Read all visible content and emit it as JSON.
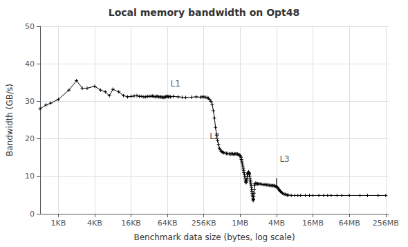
{
  "chart_data": {
    "type": "line",
    "title": "Local memory bandwidth on Opt48",
    "xlabel": "Benchmark data size (bytes, log scale)",
    "ylabel": "Bandwidth (GB/s)",
    "log": "x",
    "grid": true,
    "color": "black",
    "marker": "+",
    "xlim": [
      512,
      300000000
    ],
    "ylim": [
      0,
      50
    ],
    "yticks": [
      0,
      10,
      20,
      30,
      40,
      50
    ],
    "xticks": [
      {
        "value": 1024,
        "label": "1KB"
      },
      {
        "value": 4096,
        "label": "4KB"
      },
      {
        "value": 16384,
        "label": "16KB"
      },
      {
        "value": 65536,
        "label": "64KB"
      },
      {
        "value": 262144,
        "label": "256KB"
      },
      {
        "value": 1048576,
        "label": "1MB"
      },
      {
        "value": 4194304,
        "label": "4MB"
      },
      {
        "value": 16777216,
        "label": "16MB"
      },
      {
        "value": 67108864,
        "label": "64MB"
      },
      {
        "value": 268435456,
        "label": "256MB"
      }
    ],
    "annotations": [
      {
        "text": "L1",
        "x": 73728,
        "y": 33.5
      },
      {
        "text": "L2",
        "x": 327680,
        "y": 19.5
      },
      {
        "text": "L3",
        "x": 4718592,
        "y": 13.5
      }
    ],
    "vlines": [
      {
        "x": 4194304,
        "ymin": 7.2,
        "ymax": 9.5,
        "color": "black"
      }
    ],
    "x": [
      512,
      640,
      768,
      1024,
      1536,
      2048,
      2560,
      3072,
      4096,
      5120,
      6144,
      7168,
      8192,
      10240,
      12288,
      14336,
      16384,
      18432,
      20480,
      22528,
      24576,
      26624,
      28672,
      30720,
      32768,
      34816,
      36864,
      38912,
      40960,
      43008,
      45056,
      47104,
      49152,
      51200,
      53248,
      55296,
      57344,
      59392,
      61440,
      63488,
      65536,
      67584,
      69632,
      73728,
      81920,
      98304,
      114688,
      131072,
      163840,
      196608,
      229376,
      245760,
      262144,
      278528,
      294912,
      311296,
      327680,
      344064,
      360448,
      376832,
      393216,
      409600,
      425984,
      442368,
      458752,
      475136,
      491520,
      507904,
      524288,
      540672,
      557056,
      589824,
      622592,
      655360,
      688128,
      720896,
      753664,
      786432,
      819200,
      851968,
      884736,
      917504,
      950272,
      983040,
      1015808,
      1048576,
      1064960,
      1081344,
      1097728,
      1114112,
      1130496,
      1146880,
      1163264,
      1179648,
      1196032,
      1212416,
      1228800,
      1245184,
      1261568,
      1277952,
      1294336,
      1310720,
      1327104,
      1343488,
      1359872,
      1376256,
      1392640,
      1409024,
      1425408,
      1441792,
      1458176,
      1474560,
      1490944,
      1507328,
      1523712,
      1540096,
      1556480,
      1572864,
      1589248,
      1605632,
      1622016,
      1638400,
      1654784,
      1671168,
      1687552,
      1703936,
      1720320,
      1736704,
      1753088,
      1769472,
      1785856,
      1802240,
      1835008,
      1900544,
      1966080,
      2031616,
      2097152,
      2228224,
      2359296,
      2490368,
      2621440,
      2752512,
      2883584,
      3014656,
      3145728,
      3276800,
      3407872,
      3538944,
      3670016,
      3801088,
      3932160,
      4063232,
      4194304,
      4325376,
      4456448,
      4587520,
      4718592,
      4849664,
      4980736,
      5242880,
      5505024,
      5767168,
      6029312,
      6291456,
      6553600,
      7340032,
      8388608,
      9437184,
      10485760,
      12582912,
      14680064,
      16777216,
      20971520,
      25165824,
      29360128,
      33554432,
      41943040,
      50331648,
      67108864,
      100663296,
      134217728,
      201326592,
      268435456
    ],
    "values": [
      28.0,
      29.0,
      29.5,
      30.5,
      33.0,
      35.5,
      33.5,
      33.5,
      34.0,
      33.0,
      32.5,
      31.5,
      33.2,
      32.5,
      31.5,
      31.2,
      31.3,
      31.4,
      31.5,
      31.3,
      31.3,
      31.2,
      31.2,
      31.3,
      31.3,
      31.3,
      31.4,
      31.3,
      31.2,
      31.3,
      31.3,
      31.2,
      31.2,
      31.2,
      31.1,
      31.1,
      31.0,
      31.2,
      31.2,
      31.3,
      31.3,
      31.2,
      31.3,
      31.2,
      31.3,
      31.2,
      31.1,
      31.0,
      31.1,
      31.2,
      31.1,
      31.2,
      31.2,
      31.1,
      31.0,
      30.8,
      30.5,
      30.0,
      29.2,
      27.5,
      25.5,
      23.0,
      21.0,
      19.5,
      18.5,
      17.5,
      17.0,
      16.7,
      16.5,
      16.4,
      16.3,
      16.2,
      16.1,
      16.0,
      16.0,
      15.9,
      16.0,
      16.0,
      15.8,
      16.0,
      16.0,
      15.9,
      15.9,
      15.8,
      15.7,
      15.5,
      15.3,
      15.0,
      14.5,
      14.0,
      13.5,
      13.0,
      12.5,
      12.0,
      11.5,
      11.0,
      10.5,
      10.0,
      9.5,
      9.0,
      8.5,
      8.3,
      8.5,
      9.0,
      9.5,
      10.0,
      10.5,
      10.8,
      11.0,
      11.2,
      11.0,
      10.8,
      10.5,
      10.0,
      9.5,
      9.0,
      8.5,
      8.0,
      7.5,
      7.0,
      6.5,
      6.0,
      5.5,
      5.0,
      4.5,
      4.0,
      3.5,
      3.8,
      4.5,
      5.5,
      6.5,
      7.5,
      8.0,
      8.2,
      8.0,
      8.0,
      8.0,
      8.0,
      7.9,
      7.8,
      7.8,
      7.8,
      7.7,
      7.7,
      7.6,
      7.6,
      7.5,
      7.5,
      7.5,
      7.5,
      7.4,
      7.3,
      7.2,
      7.0,
      6.8,
      6.5,
      6.2,
      6.0,
      5.8,
      5.5,
      5.3,
      5.2,
      5.1,
      5.0,
      5.0,
      4.9,
      4.9,
      4.9,
      4.9,
      4.9,
      4.9,
      4.9,
      4.9,
      4.9,
      4.9,
      4.9,
      4.9,
      4.9,
      4.9,
      4.9,
      4.9,
      4.9,
      4.9
    ]
  }
}
